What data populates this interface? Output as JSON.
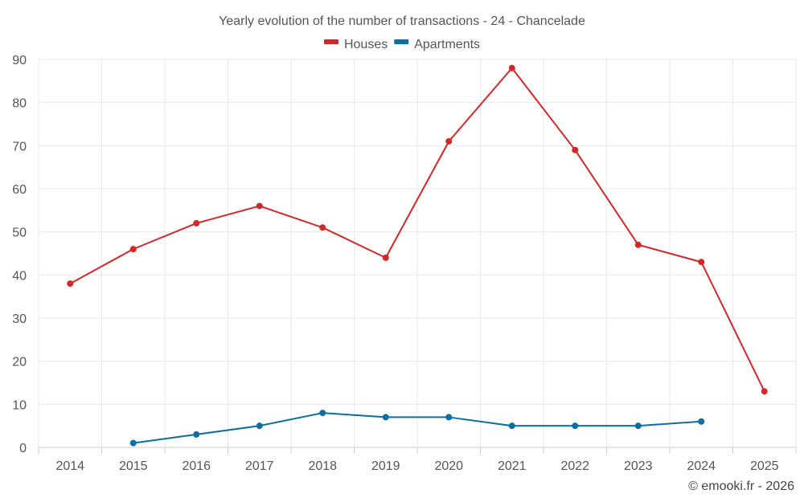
{
  "chart_data": {
    "type": "line",
    "title": "Yearly evolution of the number of transactions - 24 - Chancelade",
    "categories": [
      "2014",
      "2015",
      "2016",
      "2017",
      "2018",
      "2019",
      "2020",
      "2021",
      "2022",
      "2023",
      "2024",
      "2025"
    ],
    "ylim": [
      0,
      90
    ],
    "yticks": [
      0,
      10,
      20,
      30,
      40,
      50,
      60,
      70,
      80,
      90
    ],
    "grid": true,
    "legend_position": "top-center",
    "series": [
      {
        "name": "Houses",
        "color": "#d62728",
        "values": [
          38,
          46,
          52,
          56,
          51,
          44,
          71,
          88,
          69,
          47,
          43,
          13
        ]
      },
      {
        "name": "Apartments",
        "color": "#0d6ea3",
        "values": [
          null,
          1,
          3,
          5,
          8,
          7,
          7,
          5,
          5,
          5,
          6,
          null
        ]
      }
    ]
  },
  "credit": "© emooki.fr - 2026"
}
